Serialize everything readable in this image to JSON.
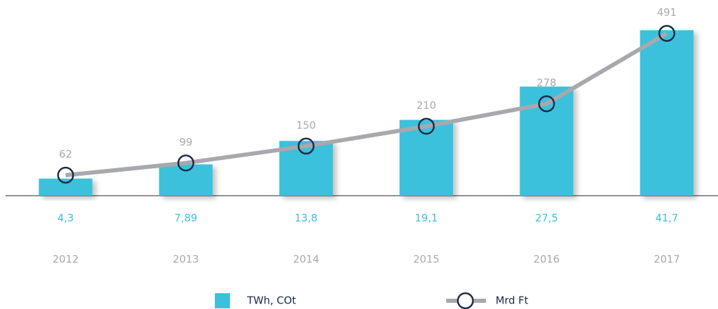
{
  "chart_data": {
    "type": "combo",
    "categories": [
      "2012",
      "2013",
      "2014",
      "2015",
      "2016",
      "2017"
    ],
    "series": [
      {
        "name": "TWh, COt",
        "type": "bar",
        "color": "#3bc1dc",
        "values": [
          4.3,
          7.89,
          13.8,
          19.1,
          27.5,
          41.7
        ],
        "value_labels": [
          "4,3",
          "7,89",
          "13,8",
          "19,1",
          "27,5",
          "41,7"
        ]
      },
      {
        "name": "Mrd Ft",
        "type": "line",
        "axis": "y2",
        "color": "#a7a9ac",
        "marker_color": "#1b2a47",
        "values": [
          62,
          99,
          150,
          210,
          278,
          491
        ]
      }
    ],
    "ylim": [
      0,
      45
    ],
    "y2lim": [
      0,
      540
    ]
  }
}
